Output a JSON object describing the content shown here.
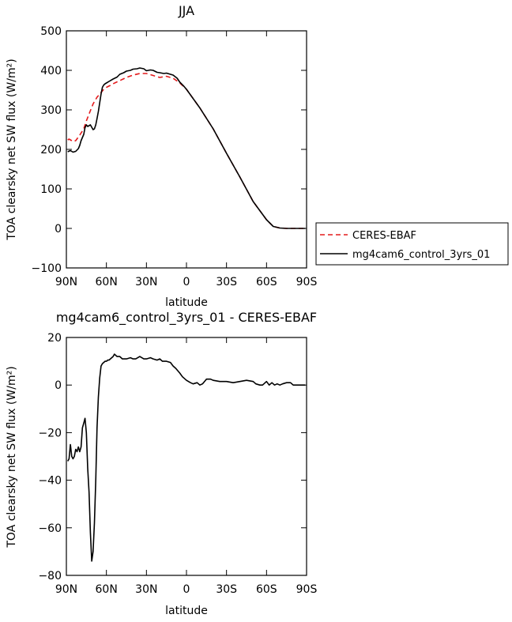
{
  "chart_data": [
    {
      "type": "line",
      "title": "JJA",
      "xlabel": "latitude",
      "ylabel": "TOA clearsky net SW flux (W/m²)",
      "x_ticks": [
        "90N",
        "60N",
        "30N",
        "0",
        "30S",
        "60S",
        "90S"
      ],
      "x_tick_values": [
        90,
        60,
        30,
        0,
        -30,
        -60,
        -90
      ],
      "xlim": [
        90,
        -90
      ],
      "ylim": [
        -100,
        500
      ],
      "y_ticks": [
        500,
        400,
        300,
        200,
        100,
        0,
        -100
      ],
      "grid": false,
      "legend_position": "right",
      "series": [
        {
          "name": "CERES-EBAF",
          "color": "#e41a1c",
          "dash": "dashed",
          "x": [
            89,
            88,
            86,
            85,
            83,
            80,
            77,
            75,
            72,
            70,
            67,
            65,
            62,
            60,
            57,
            55,
            50,
            45,
            40,
            35,
            30,
            25,
            20,
            15,
            10,
            5,
            0,
            -10,
            -20,
            -30,
            -40,
            -50,
            -60,
            -65,
            -70,
            -75,
            -80,
            -85,
            -89
          ],
          "y": [
            224,
            226,
            222,
            220,
            222,
            236,
            252,
            272,
            298,
            315,
            332,
            340,
            352,
            357,
            362,
            366,
            374,
            382,
            388,
            392,
            392,
            387,
            382,
            385,
            380,
            368,
            352,
            305,
            252,
            190,
            130,
            68,
            22,
            5,
            1,
            0,
            0,
            0,
            0
          ]
        },
        {
          "name": "mg4cam6_control_3yrs_01",
          "color": "#000000",
          "dash": "solid",
          "x": [
            89,
            87,
            85,
            83,
            81,
            80,
            79,
            77,
            76,
            75,
            74,
            72,
            71,
            70,
            69,
            68,
            67,
            66,
            65,
            64,
            63,
            62,
            61,
            60,
            58,
            55,
            52,
            50,
            47,
            45,
            42,
            40,
            37,
            35,
            32,
            30,
            27,
            25,
            22,
            20,
            17,
            15,
            12,
            10,
            7,
            5,
            2,
            0,
            -10,
            -20,
            -30,
            -40,
            -50,
            -60,
            -65,
            -70,
            -75,
            -80,
            -85,
            -89
          ],
          "y": [
            194,
            197,
            193,
            195,
            202,
            210,
            222,
            238,
            255,
            262,
            258,
            262,
            256,
            250,
            252,
            262,
            278,
            296,
            318,
            340,
            357,
            363,
            366,
            368,
            372,
            378,
            383,
            390,
            394,
            398,
            400,
            403,
            404,
            406,
            404,
            399,
            401,
            400,
            395,
            394,
            392,
            393,
            390,
            388,
            380,
            370,
            360,
            352,
            305,
            252,
            190,
            130,
            68,
            22,
            5,
            1,
            0,
            0,
            0,
            0
          ]
        }
      ]
    },
    {
      "type": "line",
      "title": "mg4cam6_control_3yrs_01 - CERES-EBAF",
      "xlabel": "latitude",
      "ylabel": "TOA clearsky net SW flux (W/m²)",
      "x_ticks": [
        "90N",
        "60N",
        "30N",
        "0",
        "30S",
        "60S",
        "90S"
      ],
      "x_tick_values": [
        90,
        60,
        30,
        0,
        -30,
        -60,
        -90
      ],
      "xlim": [
        90,
        -90
      ],
      "ylim": [
        -80,
        20
      ],
      "y_ticks": [
        20,
        0,
        -20,
        -40,
        -60,
        -80
      ],
      "grid": false,
      "series": [
        {
          "color": "#000000",
          "dash": "solid",
          "x": [
            89,
            88,
            87,
            86,
            85,
            84,
            83,
            82,
            81,
            80,
            79,
            78,
            77,
            76,
            75,
            74,
            73,
            72,
            71,
            70,
            69,
            68,
            67,
            66,
            65,
            64,
            63,
            62,
            61,
            60,
            59,
            58,
            57,
            56,
            55,
            54,
            52,
            50,
            48,
            45,
            42,
            40,
            38,
            35,
            32,
            30,
            27,
            25,
            22,
            20,
            18,
            15,
            12,
            10,
            8,
            5,
            3,
            0,
            -3,
            -5,
            -8,
            -10,
            -12,
            -15,
            -18,
            -20,
            -25,
            -30,
            -35,
            -40,
            -45,
            -50,
            -52,
            -55,
            -57,
            -60,
            -62,
            -64,
            -66,
            -68,
            -70,
            -72,
            -75,
            -78,
            -80,
            -82,
            -85,
            -89
          ],
          "y": [
            -32,
            -31,
            -25,
            -30,
            -31,
            -30,
            -27,
            -28,
            -26,
            -28,
            -26,
            -18,
            -16,
            -14,
            -20,
            -35,
            -45,
            -62,
            -74,
            -70,
            -58,
            -40,
            -18,
            -5,
            3,
            8,
            9,
            9.5,
            10,
            10,
            10.5,
            10.5,
            11,
            11.5,
            12,
            13,
            12,
            12,
            11,
            11,
            11.5,
            11,
            11,
            12,
            11,
            11,
            11.5,
            11,
            10.5,
            11,
            10,
            10,
            9.5,
            8,
            7,
            5,
            3.5,
            2,
            1,
            0.5,
            1,
            0,
            0.5,
            2.5,
            2.5,
            2,
            1.5,
            1.5,
            1,
            1.5,
            2,
            1.5,
            0.5,
            0,
            0,
            1.5,
            0,
            1,
            0,
            0.5,
            0,
            0.5,
            1,
            1,
            0,
            0,
            0,
            0
          ]
        }
      ]
    }
  ]
}
